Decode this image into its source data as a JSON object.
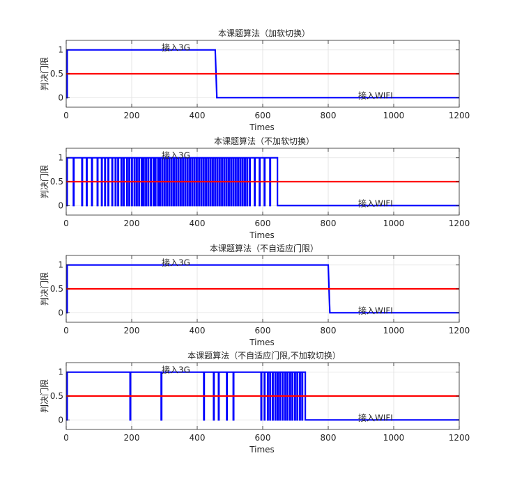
{
  "chart_data": [
    {
      "type": "line",
      "title": "本课题算法（加软切换）",
      "xlabel": "Times",
      "ylabel": "判决门限",
      "xlim": [
        0,
        1200
      ],
      "ylim": [
        -0.2,
        1.2
      ],
      "xticks": [
        "0",
        "200",
        "400",
        "600",
        "800",
        "1000",
        "1200"
      ],
      "yticks": [
        "0",
        "0.5",
        "1"
      ],
      "grid": true,
      "annotations": [
        {
          "text": "接入3G",
          "x": 300,
          "y": 1.0
        },
        {
          "text": "接入WIFI",
          "x": 900,
          "y": 0.0
        }
      ],
      "series": [
        {
          "color": "#0000ff",
          "x": [
            0,
            3,
            3,
            455,
            460,
            1200
          ],
          "y": [
            0,
            0,
            1,
            1,
            0,
            0
          ]
        },
        {
          "color": "#ff0000",
          "x": [
            0,
            1200
          ],
          "y": [
            0.5,
            0.5
          ]
        }
      ]
    },
    {
      "type": "line",
      "title": "本课题算法（不加软切换）",
      "xlabel": "Times",
      "ylabel": "判决门限",
      "xlim": [
        0,
        1200
      ],
      "ylim": [
        -0.2,
        1.2
      ],
      "xticks": [
        "0",
        "200",
        "400",
        "600",
        "800",
        "1000",
        "1200"
      ],
      "yticks": [
        "0",
        "0.5",
        "1"
      ],
      "grid": true,
      "annotations": [
        {
          "text": "接入3G",
          "x": 300,
          "y": 1.0
        },
        {
          "text": "接入WIFI",
          "x": 900,
          "y": 0.0
        }
      ],
      "series": [
        {
          "color": "#0000ff",
          "style": "switching",
          "start": 3,
          "end": 645,
          "dips": [
            22,
            48,
            62,
            78,
            95,
            108,
            118,
            128,
            140,
            150,
            158,
            168,
            175,
            185,
            192,
            200,
            208,
            215,
            222,
            230,
            236,
            243,
            250,
            258,
            266,
            272,
            280,
            286,
            293,
            300,
            307,
            314,
            321,
            328,
            335,
            342,
            349,
            356,
            363,
            370,
            377,
            384,
            391,
            398,
            405,
            412,
            419,
            426,
            433,
            440,
            447,
            454,
            461,
            468,
            475,
            482,
            489,
            496,
            503,
            510,
            517,
            524,
            531,
            538,
            545,
            552,
            560,
            575,
            590,
            605,
            622
          ],
          "x": [
            0,
            3,
            645,
            1200
          ],
          "y": [
            0,
            1,
            0,
            0
          ]
        },
        {
          "color": "#ff0000",
          "x": [
            0,
            1200
          ],
          "y": [
            0.5,
            0.5
          ]
        }
      ]
    },
    {
      "type": "line",
      "title": "本课题算法（不自适应门限）",
      "xlabel": "Times",
      "ylabel": "判决门限",
      "xlim": [
        0,
        1200
      ],
      "ylim": [
        -0.2,
        1.2
      ],
      "xticks": [
        "0",
        "200",
        "400",
        "600",
        "800",
        "1000",
        "1200"
      ],
      "yticks": [
        "0",
        "0.5",
        "1"
      ],
      "grid": true,
      "annotations": [
        {
          "text": "接入3G",
          "x": 300,
          "y": 1.0
        },
        {
          "text": "接入WIFI",
          "x": 900,
          "y": 0.0
        }
      ],
      "series": [
        {
          "color": "#0000ff",
          "x": [
            0,
            3,
            3,
            800,
            805,
            1200
          ],
          "y": [
            0,
            0,
            1,
            1,
            0,
            0
          ]
        },
        {
          "color": "#ff0000",
          "x": [
            0,
            1200
          ],
          "y": [
            0.5,
            0.5
          ]
        }
      ]
    },
    {
      "type": "line",
      "title": "本课题算法（不自适应门限,不加软切换）",
      "xlabel": "Times",
      "ylabel": "判决门限",
      "xlim": [
        0,
        1200
      ],
      "ylim": [
        -0.2,
        1.2
      ],
      "xticks": [
        "0",
        "200",
        "400",
        "600",
        "800",
        "1000",
        "1200"
      ],
      "yticks": [
        "0",
        "0.5",
        "1"
      ],
      "grid": true,
      "annotations": [
        {
          "text": "接入3G",
          "x": 300,
          "y": 1.0
        },
        {
          "text": "接入WIFI",
          "x": 900,
          "y": 0.0
        }
      ],
      "series": [
        {
          "color": "#0000ff",
          "style": "switching",
          "start": 3,
          "end": 730,
          "dips": [
            195,
            290,
            420,
            450,
            465,
            490,
            510,
            595,
            605,
            615,
            622,
            630,
            638,
            645,
            652,
            660,
            668,
            675,
            683,
            690,
            698,
            705,
            713,
            720
          ],
          "x": [
            0,
            3,
            730,
            1200
          ],
          "y": [
            0,
            1,
            0,
            0
          ]
        },
        {
          "color": "#ff0000",
          "x": [
            0,
            1200
          ],
          "y": [
            0.5,
            0.5
          ]
        }
      ]
    }
  ]
}
